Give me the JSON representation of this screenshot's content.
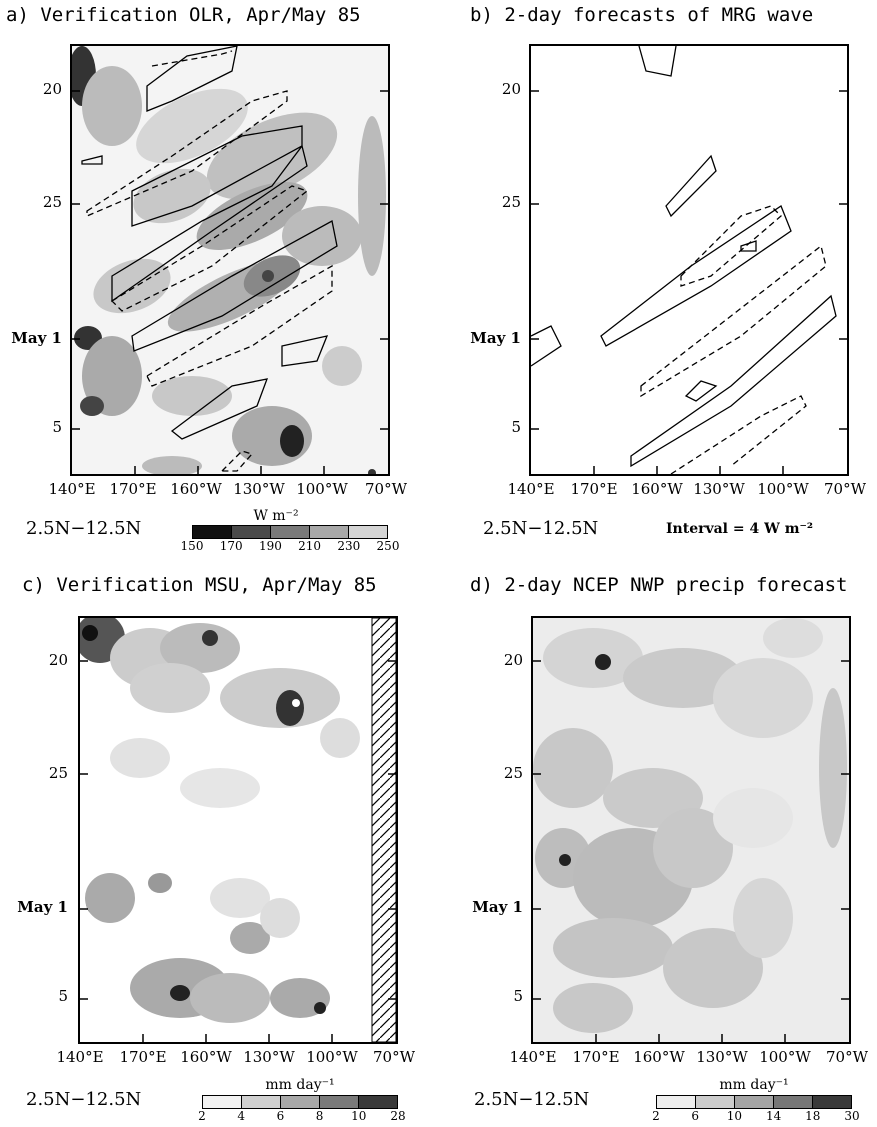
{
  "chart_data": [
    {
      "id": "a",
      "type": "heatmap",
      "title": "a) Verification OLR, Apr/May 85",
      "x_ticks": [
        "140°E",
        "170°E",
        "160°W",
        "130°W",
        "100°W",
        "70°W"
      ],
      "y_ticks": [
        "20",
        "25",
        "May 1",
        "5"
      ],
      "latitude_band": "2.5N−12.5N",
      "colorbar": {
        "unit": "W m⁻²",
        "levels": [
          "150",
          "170",
          "190",
          "210",
          "230",
          "250"
        ],
        "colors": [
          "#111111",
          "#4a4a4a",
          "#7a7a7a",
          "#a8a8a8",
          "#d4d4d4",
          "#ffffff"
        ]
      },
      "overlay": "contours of MRG-wave-filtered OLR (solid positive, dashed negative)"
    },
    {
      "id": "b",
      "type": "heatmap",
      "title": "b) 2-day forecasts of MRG wave",
      "x_ticks": [
        "140°E",
        "170°E",
        "160°W",
        "130°W",
        "100°W",
        "70°W"
      ],
      "y_ticks": [
        "20",
        "25",
        "May 1",
        "5"
      ],
      "latitude_band": "2.5N−12.5N",
      "interval_label": "Interval = 4 W m⁻²"
    },
    {
      "id": "c",
      "type": "heatmap",
      "title": "c) Verification MSU, Apr/May 85",
      "x_ticks": [
        "140°E",
        "170°E",
        "160°W",
        "130°W",
        "100°W",
        "70°W"
      ],
      "y_ticks": [
        "20",
        "25",
        "May 1",
        "5"
      ],
      "latitude_band": "2.5N−12.5N",
      "colorbar": {
        "unit": "mm day⁻¹",
        "levels": [
          "2",
          "4",
          "6",
          "8",
          "10",
          "28"
        ],
        "colors": [
          "#f2f2f2",
          "#d0d0d0",
          "#a8a8a8",
          "#7a7a7a",
          "#3a3a3a",
          "#000000"
        ]
      }
    },
    {
      "id": "d",
      "type": "heatmap",
      "title": "d) 2-day NCEP NWP precip forecast",
      "x_ticks": [
        "140°E",
        "170°E",
        "160°W",
        "130°W",
        "100°W",
        "70°W"
      ],
      "y_ticks": [
        "20",
        "25",
        "May 1",
        "5"
      ],
      "latitude_band": "2.5N−12.5N",
      "colorbar": {
        "unit": "mm day⁻¹",
        "levels": [
          "2",
          "6",
          "10",
          "14",
          "18",
          "30"
        ],
        "colors": [
          "#eeeeee",
          "#cccccc",
          "#a4a4a4",
          "#777777",
          "#3a3a3a",
          "#000000"
        ]
      }
    }
  ]
}
